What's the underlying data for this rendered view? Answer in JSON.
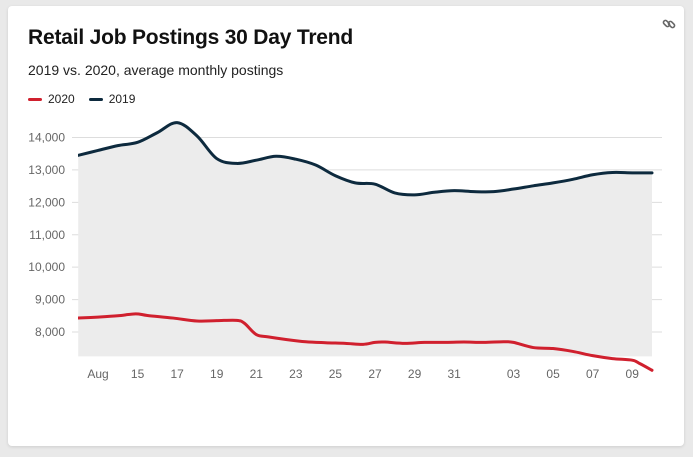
{
  "title": "Retail Job Postings 30 Day Trend",
  "subtitle": "2019 vs. 2020, average monthly postings",
  "icons": {
    "link": "link-icon"
  },
  "colors": {
    "series_2020": "#d0202e",
    "series_2019": "#0d2a3e",
    "fill_2019": "#ececec",
    "grid": "#dddddd"
  },
  "legend": [
    {
      "label": "2020",
      "color": "#d0202e"
    },
    {
      "label": "2019",
      "color": "#0d2a3e"
    }
  ],
  "chart_data": {
    "type": "line",
    "title": "Retail Job Postings 30 Day Trend",
    "subtitle": "2019 vs. 2020, average monthly postings",
    "xlabel": "",
    "ylabel": "",
    "ylim": [
      7000,
      14700
    ],
    "yticks": [
      8000,
      9000,
      10000,
      11000,
      12000,
      13000,
      14000
    ],
    "ytick_labels": [
      "8,000",
      "9,000",
      "10,000",
      "11,000",
      "12,000",
      "13,000",
      "14,000"
    ],
    "xlim": [
      0,
      28
    ],
    "x_ticks": [
      {
        "x": 0,
        "label": "Aug"
      },
      {
        "x": 2,
        "label": "15"
      },
      {
        "x": 4,
        "label": "17"
      },
      {
        "x": 6,
        "label": "19"
      },
      {
        "x": 8,
        "label": "21"
      },
      {
        "x": 10,
        "label": "23"
      },
      {
        "x": 12,
        "label": "25"
      },
      {
        "x": 14,
        "label": "27"
      },
      {
        "x": 16,
        "label": "29"
      },
      {
        "x": 18,
        "label": "31"
      },
      {
        "x": 21,
        "label": "03"
      },
      {
        "x": 23,
        "label": "05"
      },
      {
        "x": 25,
        "label": "07"
      },
      {
        "x": 27,
        "label": "09"
      }
    ],
    "grid": true,
    "legend_position": "top-left",
    "series": [
      {
        "name": "2020",
        "color": "#d0202e",
        "points": [
          [
            -1,
            8430
          ],
          [
            0,
            8460
          ],
          [
            1,
            8500
          ],
          [
            1.9,
            8560
          ],
          [
            2.5,
            8510
          ],
          [
            3.8,
            8430
          ],
          [
            5,
            8340
          ],
          [
            6,
            8350
          ],
          [
            7,
            8360
          ],
          [
            7.4,
            8270
          ],
          [
            8,
            7920
          ],
          [
            8.6,
            7850
          ],
          [
            9.5,
            7770
          ],
          [
            10.5,
            7700
          ],
          [
            11.5,
            7670
          ],
          [
            12.5,
            7650
          ],
          [
            13.4,
            7620
          ],
          [
            14,
            7680
          ],
          [
            14.5,
            7690
          ],
          [
            15.5,
            7650
          ],
          [
            16.5,
            7680
          ],
          [
            17.5,
            7680
          ],
          [
            18.5,
            7690
          ],
          [
            19.5,
            7680
          ],
          [
            20.5,
            7700
          ],
          [
            21,
            7680
          ],
          [
            22,
            7520
          ],
          [
            23,
            7490
          ],
          [
            24,
            7400
          ],
          [
            25,
            7270
          ],
          [
            26,
            7180
          ],
          [
            27,
            7130
          ],
          [
            27.4,
            7020
          ],
          [
            28,
            6820
          ]
        ]
      },
      {
        "name": "2019",
        "color": "#0d2a3e",
        "fill": true,
        "points": [
          [
            -1,
            13450
          ],
          [
            0,
            13600
          ],
          [
            1,
            13750
          ],
          [
            2,
            13850
          ],
          [
            3,
            14150
          ],
          [
            4,
            14460
          ],
          [
            5,
            14050
          ],
          [
            6,
            13350
          ],
          [
            7,
            13200
          ],
          [
            8,
            13300
          ],
          [
            9,
            13420
          ],
          [
            10,
            13330
          ],
          [
            11,
            13150
          ],
          [
            12,
            12820
          ],
          [
            13,
            12600
          ],
          [
            14,
            12560
          ],
          [
            15,
            12290
          ],
          [
            16,
            12230
          ],
          [
            17,
            12310
          ],
          [
            18,
            12360
          ],
          [
            19,
            12330
          ],
          [
            20,
            12330
          ],
          [
            21,
            12410
          ],
          [
            22,
            12510
          ],
          [
            23,
            12600
          ],
          [
            24,
            12710
          ],
          [
            25,
            12850
          ],
          [
            26,
            12920
          ],
          [
            27,
            12910
          ],
          [
            28,
            12910
          ]
        ]
      }
    ]
  }
}
